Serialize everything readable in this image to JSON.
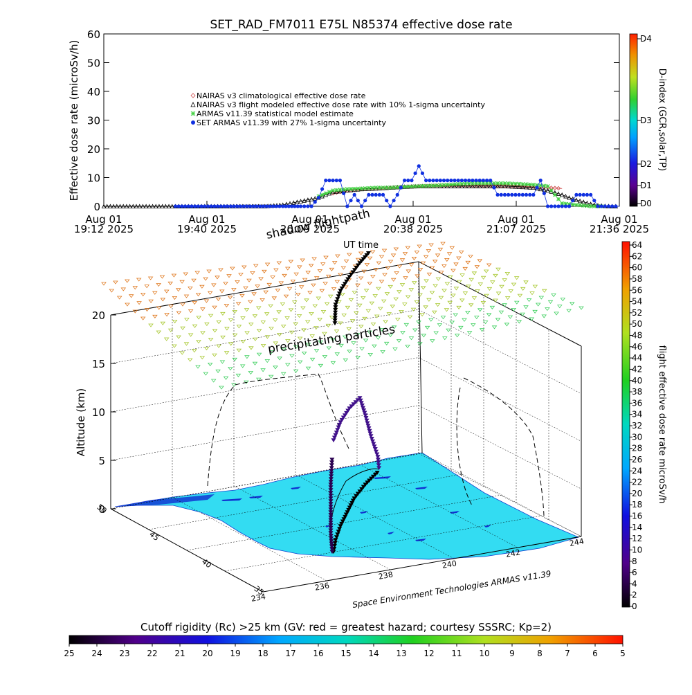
{
  "title": "SET_RAD_FM7011   E75L N85374 effective dose rate",
  "top_panel": {
    "ylabel": "Effective dose rate (microSv/h)",
    "ylim": [
      0,
      60
    ],
    "yticks": [
      "0",
      "10",
      "20",
      "30",
      "40",
      "50",
      "60"
    ],
    "xticks": [
      {
        "line1": "Aug 01",
        "line2": "19:12 2025"
      },
      {
        "line1": "Aug 01",
        "line2": "19:40 2025"
      },
      {
        "line1": "Aug 01",
        "line2": "20:09 2025"
      },
      {
        "line1": "Aug 01",
        "line2": "20:38 2025"
      },
      {
        "line1": "Aug 01",
        "line2": "21:07 2025"
      },
      {
        "line1": "Aug 01",
        "line2": "21:36 2025"
      }
    ],
    "legend": [
      {
        "label": "NAIRAS v3 climatological effective dose rate",
        "color": "#d05050",
        "marker": "diamond"
      },
      {
        "label": "NAIRAS v3 flight modeled effective dose rate with 10% 1-sigma uncertainty",
        "color": "#000000",
        "marker": "triangle"
      },
      {
        "label": "ARMAS v11.39 statistical model estimate",
        "color": "#40d040",
        "marker": "asterisk"
      },
      {
        "label": "SET ARMAS v11.39 with 27% 1-sigma uncertainty",
        "color": "#1030e0",
        "marker": "circle"
      }
    ],
    "dindex_label": "D-index (GCR,solar,TP)",
    "dindex_ticks": [
      "D0",
      "D1",
      "D2",
      "D3",
      "D4"
    ]
  },
  "chart_data": [
    {
      "type": "scatter",
      "title": "SET_RAD_FM7011   E75L N85374 effective dose rate",
      "ylabel": "Effective dose rate (microSv/h)",
      "ylim": [
        0,
        60
      ],
      "x_unit": "minutes after 19:12 UT, Aug 01 2025",
      "xlim": [
        0,
        144
      ],
      "series": [
        {
          "name": "NAIRAS v3 climatological effective dose rate",
          "x": [
            64,
            68,
            72,
            76,
            80,
            84,
            88,
            92,
            96,
            100,
            104,
            108,
            112,
            116,
            120,
            124,
            128
          ],
          "values": [
            4.5,
            5.5,
            6.0,
            6.2,
            6.5,
            6.8,
            7.0,
            7.2,
            7.3,
            7.3,
            7.2,
            7.2,
            7.1,
            7.0,
            6.8,
            6.5,
            6.2
          ]
        },
        {
          "name": "NAIRAS v3 flight modeled effective dose rate with 10% 1-sigma uncertainty",
          "x": [
            0,
            20,
            30,
            45,
            50,
            52,
            54,
            56,
            58,
            60,
            62,
            64,
            68,
            72,
            76,
            80,
            84,
            88,
            92,
            96,
            100,
            104,
            108,
            112,
            116,
            120,
            124,
            128,
            130,
            132,
            134,
            136,
            138,
            140,
            142,
            144
          ],
          "values": [
            0,
            0,
            0,
            0,
            0.5,
            1.0,
            1.5,
            2.0,
            2.5,
            3.0,
            4.0,
            5.0,
            5.5,
            6.0,
            6.2,
            6.5,
            6.8,
            7.0,
            7.0,
            7.0,
            7.0,
            7.0,
            7.0,
            7.0,
            6.8,
            6.5,
            5.5,
            4.0,
            3.0,
            2.2,
            1.5,
            0.8,
            0.3,
            0.1,
            0,
            0
          ]
        },
        {
          "name": "ARMAS v11.39 statistical model estimate",
          "x": [
            60,
            62,
            64,
            68,
            72,
            76,
            80,
            84,
            88,
            92,
            96,
            100,
            104,
            108,
            112,
            116,
            120,
            124,
            128,
            132,
            136,
            140
          ],
          "values": [
            3.5,
            4.5,
            5.5,
            6.0,
            6.2,
            6.5,
            6.5,
            6.8,
            7.0,
            7.2,
            7.5,
            7.8,
            8.0,
            8.0,
            8.0,
            7.8,
            7.5,
            7.0,
            1.0,
            0.5,
            0,
            0
          ]
        },
        {
          "name": "SET ARMAS v11.39 with 27% 1-sigma uncertainty",
          "x": [
            20,
            30,
            40,
            50,
            55,
            58,
            60,
            62,
            64,
            66,
            68,
            70,
            72,
            74,
            76,
            78,
            80,
            82,
            84,
            86,
            88,
            90,
            92,
            94,
            96,
            98,
            100,
            102,
            104,
            106,
            108,
            110,
            112,
            114,
            116,
            118,
            120,
            122,
            124,
            126,
            128,
            130,
            132,
            134,
            136,
            138,
            140,
            142,
            144
          ],
          "values": [
            0,
            0,
            0,
            0,
            0,
            0,
            3,
            9,
            9,
            9,
            0,
            4,
            0,
            4,
            4,
            4,
            0,
            4,
            9,
            9,
            14,
            9,
            9,
            9,
            9,
            9,
            9,
            9,
            9,
            9,
            9,
            4,
            4,
            4,
            4,
            4,
            4,
            9,
            0,
            0,
            0,
            0,
            4,
            4,
            4,
            0,
            0,
            0,
            0
          ]
        }
      ]
    },
    {
      "type": "scatter",
      "title": "",
      "zlabel": "Altitude (km)",
      "zlim": [
        0,
        20
      ],
      "zticks": [
        "0",
        "5",
        "10",
        "15",
        "20"
      ],
      "lon_ticks": [
        "234",
        "236",
        "238",
        "240",
        "242",
        "244"
      ],
      "lat_ticks": [
        "35",
        "40",
        "45",
        "50"
      ],
      "annotations": [
        "shadow flightpath",
        "precipitating particles",
        "UT time",
        "Space Environment Technologies ARMAS v11.39"
      ]
    }
  ],
  "dose_colorbar": {
    "label": "flight effective dose rate microSv/h",
    "ticks": [
      "0",
      "2",
      "4",
      "6",
      "8",
      "10",
      "12",
      "14",
      "16",
      "18",
      "20",
      "22",
      "24",
      "26",
      "28",
      "30",
      "32",
      "34",
      "36",
      "38",
      "40",
      "42",
      "44",
      "46",
      "48",
      "50",
      "52",
      "54",
      "56",
      "58",
      "60",
      "62",
      "64"
    ]
  },
  "cutoff_colorbar": {
    "label": "Cutoff rigidity (Rc) >25 km (GV: red = greatest hazard; courtesy SSSRC; Kp=2)",
    "ticks": [
      "25",
      "24",
      "23",
      "22",
      "21",
      "20",
      "19",
      "18",
      "17",
      "16",
      "15",
      "14",
      "13",
      "12",
      "11",
      "10",
      "9",
      "8",
      "7",
      "6",
      "5"
    ]
  },
  "colors": {
    "nairas_clim": "#d05050",
    "nairas_flight": "#000000",
    "armas_model": "#40d040",
    "set_armas": "#1030e0",
    "map_fill": "#33dcf2",
    "particles_high": "#e07a20",
    "particles_mid": "#a8c830",
    "particles_low": "#40d060"
  }
}
